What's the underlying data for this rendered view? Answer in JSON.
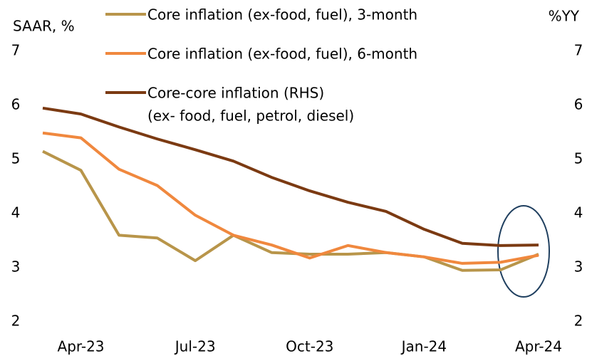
{
  "chart_data": {
    "type": "line",
    "y_label": "SAAR, %",
    "y2_label": "%YY",
    "categories": [
      null,
      "Apr-23",
      null,
      null,
      "Jul-23",
      null,
      null,
      "Oct-23",
      null,
      null,
      "Jan-24",
      null,
      null,
      "Apr-24"
    ],
    "series": [
      {
        "name": "Core inflation (ex-food, fuel), 3-month",
        "color": "#b8954a",
        "values": [
          5.15,
          4.8,
          3.6,
          3.55,
          3.13,
          3.6,
          3.28,
          3.25,
          3.25,
          3.28,
          3.2,
          2.95,
          2.96,
          3.25
        ]
      },
      {
        "name": "Core inflation (ex-food, fuel), 6-month",
        "color": "#f0883e",
        "values": [
          5.49,
          5.4,
          4.82,
          4.52,
          3.97,
          3.6,
          3.42,
          3.18,
          3.41,
          3.28,
          3.2,
          3.08,
          3.1,
          3.23
        ]
      },
      {
        "name": "Core-core inflation (RHS)",
        "name_line2": "(ex- food, fuel, petrol, diesel)",
        "color": "#7b3a12",
        "axis": "y2",
        "values": [
          5.95,
          5.84,
          5.6,
          5.38,
          5.18,
          4.97,
          4.67,
          4.42,
          4.21,
          4.04,
          3.71,
          3.45,
          3.41,
          3.42
        ]
      }
    ],
    "ylim": [
      2,
      7
    ],
    "yticks": [
      2,
      3,
      4,
      5,
      6,
      7
    ],
    "y2lim": [
      2,
      7
    ],
    "y2ticks": [
      2,
      3,
      4,
      5,
      6,
      7
    ],
    "grid": false
  }
}
